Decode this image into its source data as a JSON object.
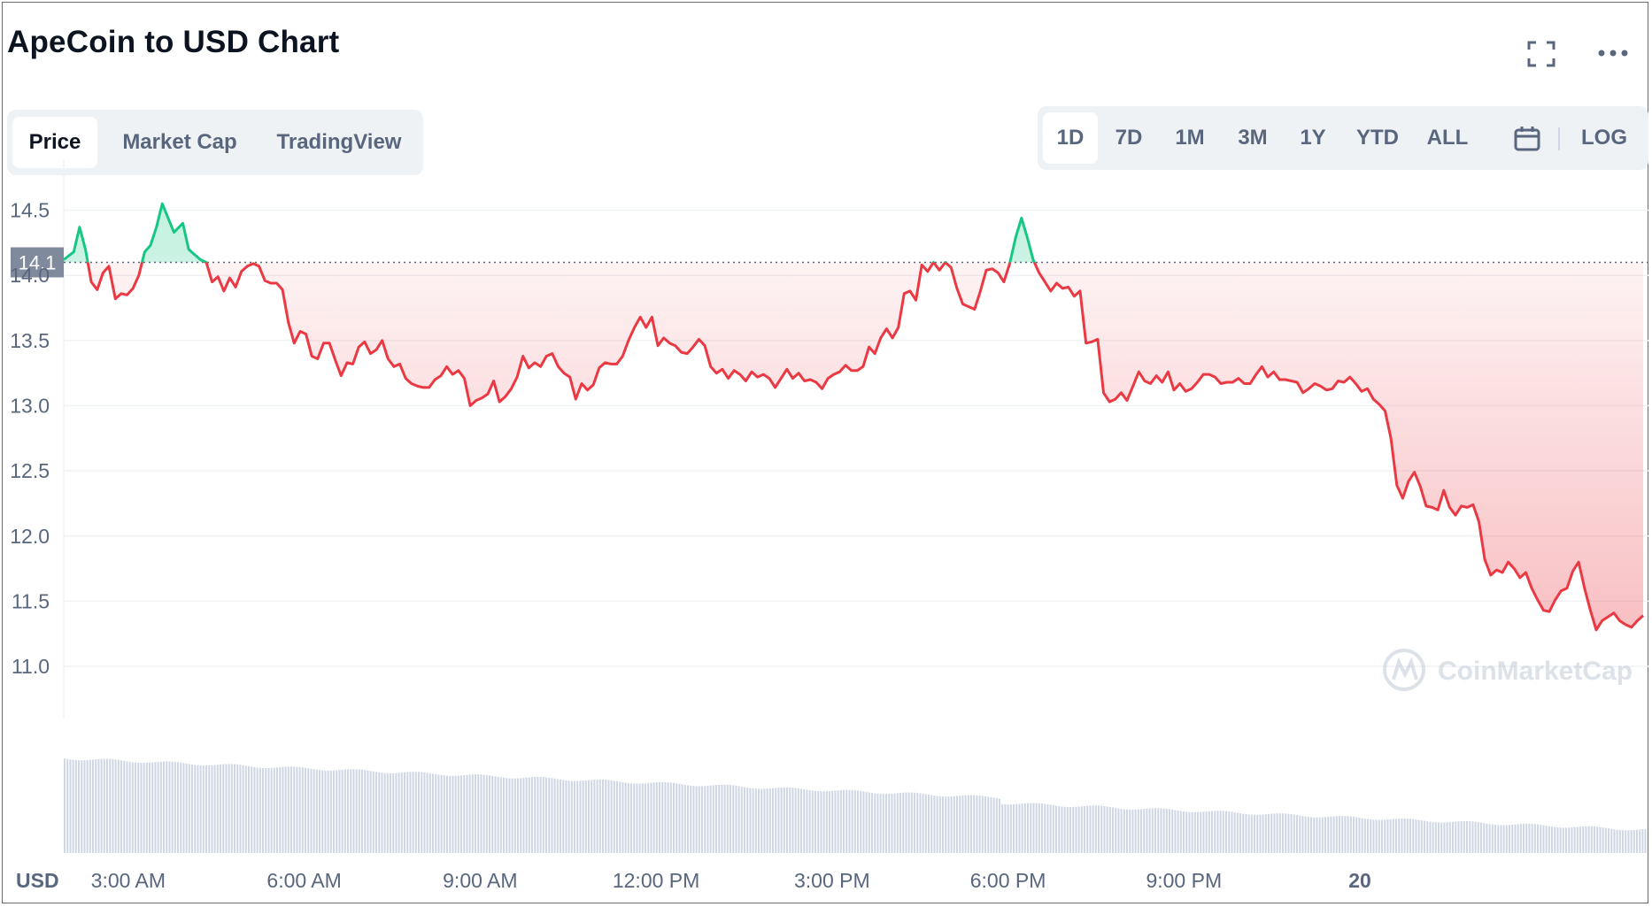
{
  "title": "ApeCoin to USD Chart",
  "header_icons": [
    "expand-icon",
    "more-icon"
  ],
  "view_tabs": [
    {
      "label": "Price",
      "active": true
    },
    {
      "label": "Market Cap",
      "active": false
    },
    {
      "label": "TradingView",
      "active": false
    }
  ],
  "range_buttons": [
    {
      "label": "1D",
      "active": true
    },
    {
      "label": "7D",
      "active": false
    },
    {
      "label": "1M",
      "active": false
    },
    {
      "label": "3M",
      "active": false
    },
    {
      "label": "1Y",
      "active": false
    },
    {
      "label": "YTD",
      "active": false
    },
    {
      "label": "ALL",
      "active": false
    }
  ],
  "calendar_icon": "calendar-icon",
  "log_label": "LOG",
  "watermark": "CoinMarketCap",
  "colors": {
    "up": "#16c784",
    "down": "#ea3943",
    "grid": "#eff2f5",
    "axis_text": "#58667e",
    "price_label_bg": "#808a9d",
    "volume": "#cfd6e4"
  },
  "chart_data": {
    "type": "line",
    "currency_label": "USD",
    "ylim": [
      10.6,
      14.85
    ],
    "y_ticks": [
      11.0,
      11.5,
      12.0,
      12.5,
      13.0,
      13.5,
      14.0,
      14.5
    ],
    "x_tick_labels": [
      "3:00 AM",
      "6:00 AM",
      "9:00 AM",
      "12:00 PM",
      "3:00 PM",
      "6:00 PM",
      "9:00 PM",
      "20"
    ],
    "x_ticks_hours": [
      3,
      6,
      9,
      12,
      15,
      18,
      21,
      24
    ],
    "x_range_hours": [
      1.9,
      25.8
    ],
    "reference_price": 14.1,
    "reference_label": "14.1",
    "grid": true,
    "series": [
      {
        "points": [
          [
            1.9,
            14.12
          ],
          [
            2.07,
            14.18
          ],
          [
            2.17,
            14.37
          ],
          [
            2.27,
            14.2
          ],
          [
            2.37,
            13.95
          ],
          [
            2.47,
            13.89
          ],
          [
            2.57,
            14.02
          ],
          [
            2.67,
            14.07
          ],
          [
            2.78,
            13.82
          ],
          [
            2.88,
            13.86
          ],
          [
            2.98,
            13.85
          ],
          [
            3.08,
            13.9
          ],
          [
            3.18,
            14.0
          ],
          [
            3.28,
            14.18
          ],
          [
            3.38,
            14.23
          ],
          [
            3.48,
            14.37
          ],
          [
            3.58,
            14.55
          ],
          [
            3.68,
            14.44
          ],
          [
            3.78,
            14.33
          ],
          [
            3.93,
            14.4
          ],
          [
            4.03,
            14.2
          ],
          [
            4.13,
            14.16
          ],
          [
            4.23,
            14.12
          ],
          [
            4.33,
            14.1
          ],
          [
            4.43,
            13.95
          ],
          [
            4.53,
            13.99
          ],
          [
            4.63,
            13.88
          ],
          [
            4.73,
            13.98
          ],
          [
            4.83,
            13.91
          ],
          [
            4.93,
            14.03
          ],
          [
            5.03,
            14.07
          ],
          [
            5.13,
            14.09
          ],
          [
            5.23,
            14.07
          ],
          [
            5.33,
            13.96
          ],
          [
            5.43,
            13.94
          ],
          [
            5.53,
            13.94
          ],
          [
            5.63,
            13.89
          ],
          [
            5.73,
            13.64
          ],
          [
            5.83,
            13.48
          ],
          [
            5.93,
            13.57
          ],
          [
            6.03,
            13.55
          ],
          [
            6.13,
            13.38
          ],
          [
            6.23,
            13.36
          ],
          [
            6.33,
            13.48
          ],
          [
            6.43,
            13.48
          ],
          [
            6.53,
            13.35
          ],
          [
            6.63,
            13.23
          ],
          [
            6.73,
            13.33
          ],
          [
            6.83,
            13.32
          ],
          [
            6.93,
            13.45
          ],
          [
            7.03,
            13.49
          ],
          [
            7.13,
            13.4
          ],
          [
            7.23,
            13.43
          ],
          [
            7.33,
            13.5
          ],
          [
            7.43,
            13.36
          ],
          [
            7.53,
            13.3
          ],
          [
            7.63,
            13.32
          ],
          [
            7.73,
            13.21
          ],
          [
            7.83,
            13.17
          ],
          [
            7.93,
            13.15
          ],
          [
            8.03,
            13.14
          ],
          [
            8.13,
            13.14
          ],
          [
            8.23,
            13.2
          ],
          [
            8.33,
            13.23
          ],
          [
            8.43,
            13.3
          ],
          [
            8.53,
            13.24
          ],
          [
            8.63,
            13.27
          ],
          [
            8.73,
            13.21
          ],
          [
            8.83,
            13.0
          ],
          [
            8.93,
            13.04
          ],
          [
            9.03,
            13.06
          ],
          [
            9.13,
            13.09
          ],
          [
            9.23,
            13.19
          ],
          [
            9.33,
            13.03
          ],
          [
            9.43,
            13.07
          ],
          [
            9.53,
            13.13
          ],
          [
            9.63,
            13.22
          ],
          [
            9.73,
            13.38
          ],
          [
            9.83,
            13.29
          ],
          [
            9.93,
            13.33
          ],
          [
            10.03,
            13.3
          ],
          [
            10.13,
            13.38
          ],
          [
            10.23,
            13.4
          ],
          [
            10.33,
            13.3
          ],
          [
            10.43,
            13.25
          ],
          [
            10.53,
            13.22
          ],
          [
            10.63,
            13.05
          ],
          [
            10.73,
            13.17
          ],
          [
            10.83,
            13.12
          ],
          [
            10.93,
            13.16
          ],
          [
            11.03,
            13.29
          ],
          [
            11.13,
            13.33
          ],
          [
            11.23,
            13.32
          ],
          [
            11.33,
            13.32
          ],
          [
            11.43,
            13.38
          ],
          [
            11.53,
            13.5
          ],
          [
            11.63,
            13.6
          ],
          [
            11.73,
            13.68
          ],
          [
            11.83,
            13.6
          ],
          [
            11.93,
            13.68
          ],
          [
            12.03,
            13.46
          ],
          [
            12.13,
            13.52
          ],
          [
            12.23,
            13.48
          ],
          [
            12.33,
            13.46
          ],
          [
            12.43,
            13.41
          ],
          [
            12.53,
            13.4
          ],
          [
            12.63,
            13.45
          ],
          [
            12.73,
            13.51
          ],
          [
            12.83,
            13.46
          ],
          [
            12.93,
            13.3
          ],
          [
            13.03,
            13.25
          ],
          [
            13.13,
            13.28
          ],
          [
            13.23,
            13.21
          ],
          [
            13.33,
            13.27
          ],
          [
            13.43,
            13.24
          ],
          [
            13.53,
            13.19
          ],
          [
            13.63,
            13.26
          ],
          [
            13.73,
            13.22
          ],
          [
            13.83,
            13.24
          ],
          [
            13.93,
            13.21
          ],
          [
            14.03,
            13.14
          ],
          [
            14.13,
            13.21
          ],
          [
            14.23,
            13.28
          ],
          [
            14.33,
            13.21
          ],
          [
            14.43,
            13.25
          ],
          [
            14.53,
            13.19
          ],
          [
            14.63,
            13.2
          ],
          [
            14.73,
            13.18
          ],
          [
            14.83,
            13.13
          ],
          [
            14.93,
            13.21
          ],
          [
            15.03,
            13.24
          ],
          [
            15.13,
            13.26
          ],
          [
            15.23,
            13.31
          ],
          [
            15.33,
            13.27
          ],
          [
            15.43,
            13.27
          ],
          [
            15.53,
            13.3
          ],
          [
            15.63,
            13.45
          ],
          [
            15.73,
            13.4
          ],
          [
            15.83,
            13.52
          ],
          [
            15.93,
            13.59
          ],
          [
            16.03,
            13.52
          ],
          [
            16.13,
            13.6
          ],
          [
            16.23,
            13.86
          ],
          [
            16.33,
            13.88
          ],
          [
            16.43,
            13.81
          ],
          [
            16.53,
            14.08
          ],
          [
            16.63,
            14.03
          ],
          [
            16.73,
            14.1
          ],
          [
            16.83,
            14.04
          ],
          [
            16.93,
            14.1
          ],
          [
            17.03,
            14.06
          ],
          [
            17.13,
            13.9
          ],
          [
            17.23,
            13.78
          ],
          [
            17.33,
            13.76
          ],
          [
            17.43,
            13.74
          ],
          [
            17.53,
            13.88
          ],
          [
            17.63,
            14.04
          ],
          [
            17.73,
            14.05
          ],
          [
            17.83,
            14.02
          ],
          [
            17.93,
            13.95
          ],
          [
            18.03,
            14.09
          ],
          [
            18.13,
            14.29
          ],
          [
            18.23,
            14.44
          ],
          [
            18.33,
            14.29
          ],
          [
            18.43,
            14.12
          ],
          [
            18.53,
            14.02
          ],
          [
            18.63,
            13.95
          ],
          [
            18.73,
            13.88
          ],
          [
            18.83,
            13.94
          ],
          [
            18.93,
            13.9
          ],
          [
            19.03,
            13.91
          ],
          [
            19.13,
            13.84
          ],
          [
            19.23,
            13.88
          ],
          [
            19.33,
            13.48
          ],
          [
            19.43,
            13.49
          ],
          [
            19.53,
            13.51
          ],
          [
            19.63,
            13.1
          ],
          [
            19.73,
            13.03
          ],
          [
            19.83,
            13.05
          ],
          [
            19.93,
            13.1
          ],
          [
            20.03,
            13.04
          ],
          [
            20.13,
            13.15
          ],
          [
            20.23,
            13.26
          ],
          [
            20.33,
            13.19
          ],
          [
            20.43,
            13.17
          ],
          [
            20.53,
            13.23
          ],
          [
            20.63,
            13.18
          ],
          [
            20.73,
            13.26
          ],
          [
            20.83,
            13.12
          ],
          [
            20.93,
            13.17
          ],
          [
            21.03,
            13.11
          ],
          [
            21.13,
            13.13
          ],
          [
            21.23,
            13.18
          ],
          [
            21.33,
            13.24
          ],
          [
            21.43,
            13.24
          ],
          [
            21.53,
            13.22
          ],
          [
            21.63,
            13.17
          ],
          [
            21.73,
            13.18
          ],
          [
            21.83,
            13.18
          ],
          [
            21.93,
            13.21
          ],
          [
            22.03,
            13.17
          ],
          [
            22.13,
            13.17
          ],
          [
            22.23,
            13.24
          ],
          [
            22.33,
            13.3
          ],
          [
            22.43,
            13.22
          ],
          [
            22.53,
            13.26
          ],
          [
            22.63,
            13.2
          ],
          [
            22.73,
            13.2
          ],
          [
            22.83,
            13.19
          ],
          [
            22.93,
            13.18
          ],
          [
            23.03,
            13.1
          ],
          [
            23.13,
            13.13
          ],
          [
            23.23,
            13.17
          ],
          [
            23.33,
            13.15
          ],
          [
            23.43,
            13.12
          ],
          [
            23.53,
            13.13
          ],
          [
            23.63,
            13.19
          ],
          [
            23.73,
            13.18
          ],
          [
            23.83,
            13.22
          ],
          [
            23.93,
            13.17
          ],
          [
            24.03,
            13.11
          ],
          [
            24.13,
            13.13
          ],
          [
            24.23,
            13.05
          ],
          [
            24.33,
            13.01
          ],
          [
            24.43,
            12.96
          ],
          [
            24.53,
            12.75
          ],
          [
            24.63,
            12.39
          ],
          [
            24.73,
            12.29
          ],
          [
            24.83,
            12.42
          ],
          [
            24.93,
            12.49
          ],
          [
            25.03,
            12.38
          ],
          [
            25.13,
            12.23
          ],
          [
            25.23,
            12.22
          ],
          [
            25.33,
            12.2
          ],
          [
            25.43,
            12.35
          ],
          [
            25.53,
            12.22
          ],
          [
            25.63,
            12.16
          ],
          [
            25.73,
            12.23
          ],
          [
            25.83,
            12.22
          ],
          [
            25.93,
            12.24
          ],
          [
            26.03,
            12.11
          ],
          [
            26.13,
            11.82
          ],
          [
            26.23,
            11.7
          ],
          [
            26.33,
            11.74
          ],
          [
            26.43,
            11.72
          ],
          [
            26.53,
            11.8
          ],
          [
            26.63,
            11.75
          ],
          [
            26.73,
            11.68
          ],
          [
            26.83,
            11.72
          ],
          [
            26.93,
            11.6
          ],
          [
            27.03,
            11.51
          ],
          [
            27.13,
            11.43
          ],
          [
            27.23,
            11.42
          ],
          [
            27.33,
            11.51
          ],
          [
            27.43,
            11.58
          ],
          [
            27.53,
            11.6
          ],
          [
            27.63,
            11.73
          ],
          [
            27.73,
            11.8
          ],
          [
            27.83,
            11.6
          ],
          [
            27.93,
            11.43
          ],
          [
            28.03,
            11.28
          ],
          [
            28.13,
            11.35
          ],
          [
            28.23,
            11.38
          ],
          [
            28.33,
            11.41
          ],
          [
            28.43,
            11.35
          ],
          [
            28.53,
            11.32
          ],
          [
            28.63,
            11.3
          ],
          [
            28.73,
            11.35
          ],
          [
            28.83,
            11.39
          ]
        ]
      }
    ]
  }
}
